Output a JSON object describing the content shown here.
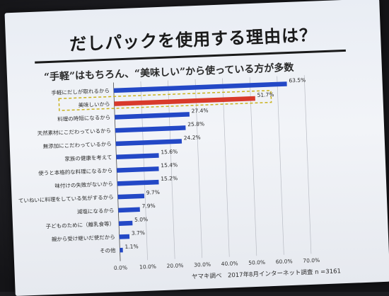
{
  "slide": {
    "title": "だしパックを使用する理由は？",
    "subtitle": "“手軽”はもちろん、“美味しい”から使っている方が多数",
    "source": "ヤマキ調べ　2017年8月インターネット調査 n =3161"
  },
  "chart_data": {
    "type": "bar",
    "orientation": "horizontal",
    "title": "だしパックを使用する理由は？",
    "categories": [
      "手軽にだしが取れるから",
      "美味しいから",
      "料理の時短になるから",
      "天然素材にこだわっているから",
      "無添加にこだわっているから",
      "家族の健康を考えて",
      "使うと本格的な料理になるから",
      "味付けの失敗がないから",
      "ていねいに料理をしている気がするから",
      "減塩になるから",
      "子どものために（離乳食等）",
      "親から受け継いだ使だから",
      "その他"
    ],
    "values": [
      63.5,
      51.7,
      27.4,
      25.8,
      24.2,
      15.6,
      15.4,
      15.2,
      9.7,
      7.9,
      5.0,
      3.7,
      1.1
    ],
    "value_labels": [
      "63.5%",
      "51.7%",
      "27.4%",
      "25.8%",
      "24.2%",
      "15.6%",
      "15.4%",
      "15.2%",
      "9.7%",
      "7.9%",
      "5.0%",
      "3.7%",
      "1.1%"
    ],
    "highlight_index": 1,
    "xlim": [
      0,
      70
    ],
    "x_ticks": [
      "0.0%",
      "10.0%",
      "20.0%",
      "30.0%",
      "40.0%",
      "50.0%",
      "60.0%",
      "70.0%"
    ],
    "grid": true,
    "colors": {
      "bar": "#2348c6",
      "highlight": "#d8392b",
      "highlight_box": "#c9b21c"
    }
  }
}
